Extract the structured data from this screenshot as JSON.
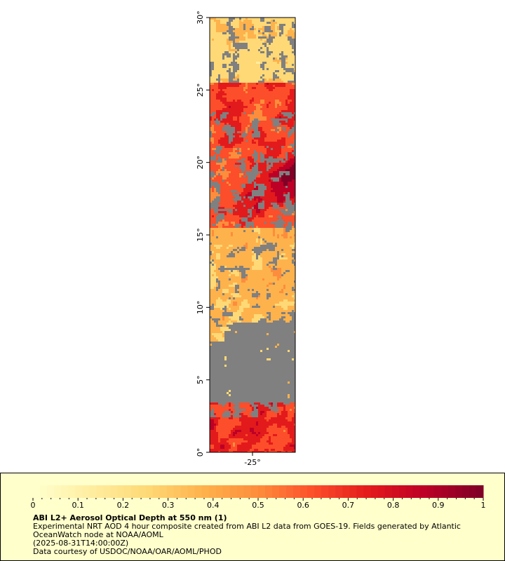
{
  "map": {
    "lat_ticks": [
      "0°",
      "5°",
      "10°",
      "15°",
      "20°",
      "25°",
      "30°"
    ],
    "lon_ticks": [
      "-25°"
    ],
    "missing_color": "#808080",
    "palette": [
      "#ffffcc",
      "#ffeda0",
      "#fed976",
      "#feb24c",
      "#fd8d3c",
      "#fc4e2a",
      "#e31a1c",
      "#bd0026",
      "#800026"
    ]
  },
  "legend": {
    "ticks": [
      "0",
      "0.1",
      "0.2",
      "0.3",
      "0.4",
      "0.5",
      "0.6",
      "0.7",
      "0.8",
      "0.9",
      "1"
    ],
    "range": [
      0,
      1
    ]
  },
  "caption": {
    "title": "ABI L2+ Aerosol Optical Depth at 550 nm (1)",
    "description": "Experimental NRT AOD 4 hour composite created from ABI L2 data from GOES-19. Fields generated by Atlantic OceanWatch node at NOAA/AOML",
    "time": "(2025-08-31T14:00:00Z)",
    "credit": "Data courtesy of USDOC/NOAA/OAR/AOML/PHOD"
  }
}
